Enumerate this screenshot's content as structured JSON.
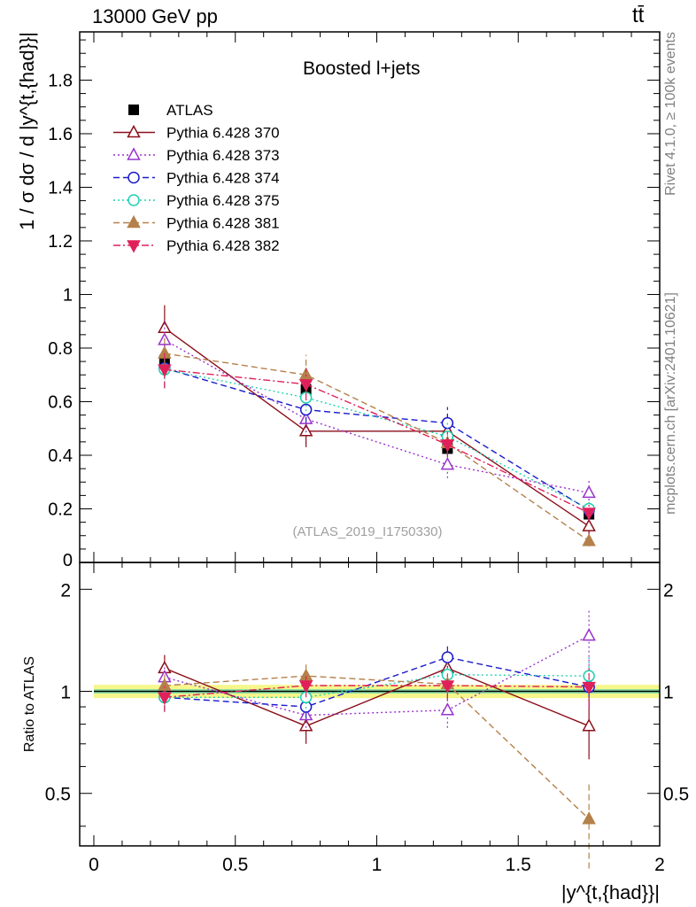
{
  "header": {
    "process": "13000 GeV pp",
    "channel": "tt̄"
  },
  "chart_data": {
    "type": "scatter",
    "title": "Boosted l+jets",
    "analysis_id": "(ATLAS_2019_I1750330)",
    "side_label_1": "Rivet 4.1.0, ≥ 100k events",
    "side_label_2": "mcplots.cern.ch [arXiv:2401.10621]",
    "main_ylabel": "1 / σ dσ / d |y^{t,{had}}|",
    "ratio_ylabel": "Ratio to ATLAS",
    "xlabel": "|y^{t,{had}}|",
    "xlim": [
      -0.05,
      2.0
    ],
    "ylim_main": [
      0.0,
      1.98
    ],
    "ylim_ratio": [
      0.35,
      2.4
    ],
    "ratio_scale": "log",
    "x_ticks": [
      0,
      0.5,
      1,
      1.5,
      2
    ],
    "x_tick_labels": [
      "0",
      "0.5",
      "1",
      "1.5",
      "2"
    ],
    "main_y_ticks": [
      0.2,
      0.4,
      0.6,
      0.8,
      1,
      1.2,
      1.4,
      1.6,
      1.8
    ],
    "main_y_tick_labels": [
      "0.2",
      "0.4",
      "0.6",
      "0.8",
      "1",
      "1.2",
      "1.4",
      "1.6",
      "1.8"
    ],
    "main_y_zero_label": "0",
    "ratio_y_ticks": [
      0.5,
      1,
      2
    ],
    "ratio_y_tick_labels": [
      "0.5",
      "1",
      "2"
    ],
    "x": [
      0.25,
      0.75,
      1.25,
      1.75
    ],
    "bin_edges": [
      0.0,
      0.5,
      1.0,
      1.5,
      2.0
    ],
    "band_inner": 0.015,
    "band_outer": 0.045,
    "series": [
      {
        "name": "ATLAS",
        "role": "data",
        "color": "#000000",
        "marker": "square-filled",
        "dash": "none",
        "values": [
          0.755,
          0.645,
          0.425,
          0.18
        ],
        "errors": [
          0.03,
          0.025,
          0.02,
          0.015
        ]
      },
      {
        "name": "Pythia 6.428 370",
        "color": "#8b0f1a",
        "marker": "triangle-up-open",
        "dash": "solid",
        "histogram": true,
        "values": [
          0.875,
          0.49,
          0.49,
          0.135
        ],
        "errors": [
          0.085,
          0.06,
          0.06,
          0.035
        ],
        "ratio": [
          1.17,
          0.79,
          1.17,
          0.79
        ],
        "ratio_errors": [
          0.11,
          0.09,
          0.11,
          0.16
        ]
      },
      {
        "name": "Pythia 6.428 373",
        "color": "#9932cc",
        "marker": "triangle-up-open",
        "dash": "dotted",
        "values": [
          0.83,
          0.535,
          0.365,
          0.26
        ],
        "errors": [
          0.075,
          0.05,
          0.05,
          0.045
        ],
        "ratio": [
          1.1,
          0.85,
          0.88,
          1.46
        ],
        "ratio_errors": [
          0.1,
          0.07,
          0.1,
          0.27
        ]
      },
      {
        "name": "Pythia 6.428 374",
        "color": "#1a1acc",
        "marker": "circle-open",
        "dash": "dashed",
        "values": [
          0.725,
          0.57,
          0.52,
          0.195
        ],
        "errors": [
          0.075,
          0.05,
          0.06,
          0.03
        ],
        "ratio": [
          0.96,
          0.9,
          1.26,
          1.03
        ],
        "ratio_errors": [
          0.09,
          0.07,
          0.12,
          0.14
        ]
      },
      {
        "name": "Pythia 6.428 375",
        "color": "#20d0b0",
        "marker": "circle-open",
        "dash": "dotted",
        "values": [
          0.72,
          0.615,
          0.47,
          0.2
        ],
        "errors": [
          0.07,
          0.05,
          0.055,
          0.03
        ],
        "ratio": [
          0.96,
          0.96,
          1.12,
          1.11
        ],
        "ratio_errors": [
          0.09,
          0.07,
          0.12,
          0.16
        ]
      },
      {
        "name": "Pythia 6.428 381",
        "color": "#b5804a",
        "marker": "triangle-up-filled",
        "dash": "dashed",
        "values": [
          0.78,
          0.7,
          0.445,
          0.08
        ],
        "errors": [
          0.075,
          0.075,
          0.045,
          0.02
        ],
        "ratio": [
          1.04,
          1.11,
          1.05,
          0.42
        ],
        "ratio_errors": [
          0.1,
          0.09,
          0.1,
          0.12
        ]
      },
      {
        "name": "Pythia 6.428 382",
        "color": "#e0205a",
        "marker": "triangle-down-filled",
        "dash": "dashdot",
        "values": [
          0.72,
          0.665,
          0.44,
          0.185
        ],
        "errors": [
          0.07,
          0.06,
          0.05,
          0.03
        ],
        "ratio": [
          0.96,
          1.04,
          1.04,
          1.03
        ],
        "ratio_errors": [
          0.09,
          0.08,
          0.1,
          0.14
        ]
      }
    ]
  }
}
